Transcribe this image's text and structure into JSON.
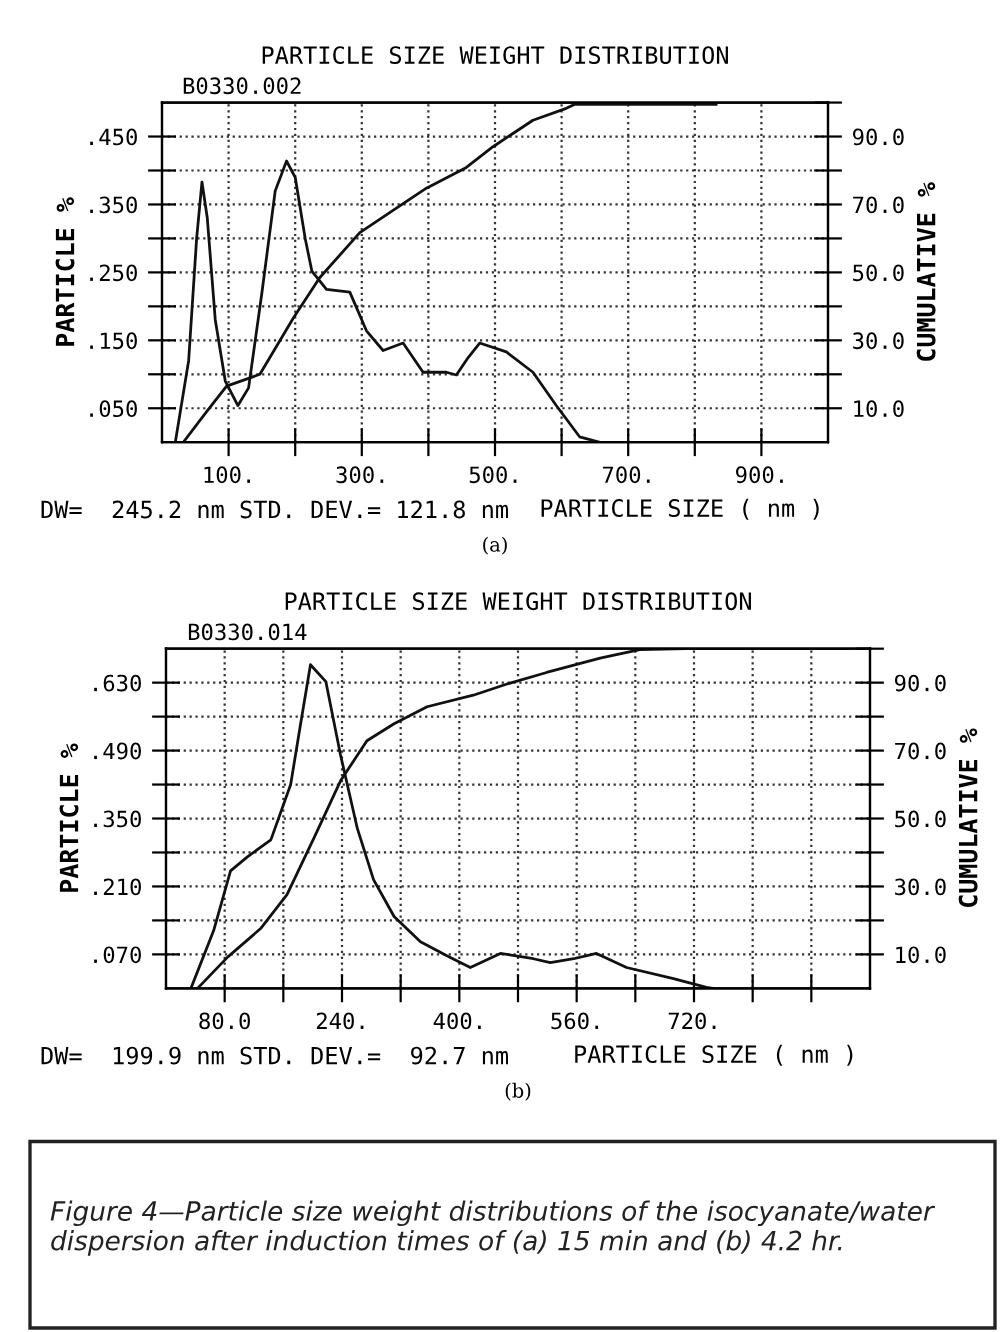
{
  "chart_data": [
    {
      "type": "line",
      "title": "PARTICLE SIZE WEIGHT DISTRIBUTION",
      "subtitle": "B0330.002",
      "xlabel": "PARTICLE SIZE ( nm )",
      "ylabel": "PARTICLE %",
      "y2label": "CUMULATIVE %",
      "annotations": [
        "DW=  245.2 nm STD. DEV.= 121.8 nm",
        "(a)"
      ],
      "xlim": [
        0,
        1000
      ],
      "xticks": [
        {
          "value": 100,
          "label": "100."
        },
        {
          "value": 200,
          "label": null
        },
        {
          "value": 300,
          "label": "300."
        },
        {
          "value": 400,
          "label": null
        },
        {
          "value": 500,
          "label": "500."
        },
        {
          "value": 600,
          "label": null
        },
        {
          "value": 700,
          "label": "700."
        },
        {
          "value": 800,
          "label": null
        },
        {
          "value": 900,
          "label": "900."
        }
      ],
      "ylim": [
        0,
        0.5
      ],
      "yticks": [
        {
          "value": 0.05,
          "label": ".050"
        },
        {
          "value": 0.1,
          "label": null
        },
        {
          "value": 0.15,
          "label": ".150"
        },
        {
          "value": 0.2,
          "label": null
        },
        {
          "value": 0.25,
          "label": ".250"
        },
        {
          "value": 0.3,
          "label": null
        },
        {
          "value": 0.35,
          "label": ".350"
        },
        {
          "value": 0.4,
          "label": null
        },
        {
          "value": 0.45,
          "label": ".450"
        }
      ],
      "y2lim": [
        0,
        100
      ],
      "y2ticks": [
        {
          "value": 10,
          "label": "10.0"
        },
        {
          "value": 20,
          "label": null
        },
        {
          "value": 30,
          "label": "30.0"
        },
        {
          "value": 40,
          "label": null
        },
        {
          "value": 50,
          "label": "50.0"
        },
        {
          "value": 60,
          "label": null
        },
        {
          "value": 70,
          "label": "70.0"
        },
        {
          "value": 80,
          "label": null
        },
        {
          "value": 90,
          "label": "90.0"
        },
        {
          "value": 100,
          "label": null
        }
      ],
      "grid": true,
      "marker": "none",
      "line_style": "solid",
      "series": [
        {
          "color": "#111111",
          "x": [
            20,
            40,
            52,
            60,
            68,
            80,
            95,
            114,
            130,
            150,
            170,
            187,
            200,
            215,
            225,
            247,
            282,
            307,
            332,
            362,
            392,
            427,
            442,
            460,
            477,
            517,
            557,
            592,
            627,
            657
          ],
          "values": [
            0,
            0.12,
            0.3,
            0.383,
            0.33,
            0.18,
            0.09,
            0.054,
            0.08,
            0.22,
            0.37,
            0.414,
            0.39,
            0.3,
            0.252,
            0.225,
            0.221,
            0.164,
            0.135,
            0.146,
            0.103,
            0.103,
            0.099,
            0.125,
            0.146,
            0.133,
            0.103,
            0.054,
            0.008,
            0
          ]
        },
        {
          "color": "#111111",
          "axis": "y2",
          "x": [
            32,
            67,
            97,
            147,
            197,
            237,
            297,
            357,
            397,
            457,
            497,
            557,
            607,
            620,
            832
          ],
          "values": [
            0,
            9,
            16.5,
            20,
            36.5,
            48.5,
            61.7,
            69.6,
            74.8,
            80.9,
            87,
            94.8,
            98.3,
            99.5,
            99.5
          ]
        }
      ]
    },
    {
      "type": "line",
      "title": "PARTICLE SIZE WEIGHT DISTRIBUTION",
      "subtitle": "B0330.014",
      "xlabel": "PARTICLE SIZE ( nm )",
      "ylabel": "PARTICLE %",
      "y2label": "CUMULATIVE %",
      "annotations": [
        "DW=  199.9 nm STD. DEV.=  92.7 nm",
        "(b)",
        "Figure 4—Particle size weight distributions of the isocyanate/water dispersion after induction times of (a) 15 min and (b) 4.2 hr."
      ],
      "xlim": [
        0,
        960
      ],
      "xticks": [
        {
          "value": 80,
          "label": "80.0"
        },
        {
          "value": 160,
          "label": null
        },
        {
          "value": 240,
          "label": "240."
        },
        {
          "value": 320,
          "label": null
        },
        {
          "value": 400,
          "label": "400."
        },
        {
          "value": 480,
          "label": null
        },
        {
          "value": 560,
          "label": "560."
        },
        {
          "value": 640,
          "label": null
        },
        {
          "value": 720,
          "label": "720."
        },
        {
          "value": 800,
          "label": null
        },
        {
          "value": 880,
          "label": null
        }
      ],
      "ylim": [
        0,
        0.7
      ],
      "yticks": [
        {
          "value": 0.07,
          "label": ".070"
        },
        {
          "value": 0.14,
          "label": null
        },
        {
          "value": 0.21,
          "label": ".210"
        },
        {
          "value": 0.28,
          "label": null
        },
        {
          "value": 0.35,
          "label": ".350"
        },
        {
          "value": 0.42,
          "label": null
        },
        {
          "value": 0.49,
          "label": ".490"
        },
        {
          "value": 0.56,
          "label": null
        },
        {
          "value": 0.63,
          "label": ".630"
        }
      ],
      "y2lim": [
        0,
        100
      ],
      "y2ticks": [
        {
          "value": 10,
          "label": "10.0"
        },
        {
          "value": 20,
          "label": null
        },
        {
          "value": 30,
          "label": "30.0"
        },
        {
          "value": 40,
          "label": null
        },
        {
          "value": 50,
          "label": "50.0"
        },
        {
          "value": 60,
          "label": null
        },
        {
          "value": 70,
          "label": "70.0"
        },
        {
          "value": 80,
          "label": null
        },
        {
          "value": 90,
          "label": "90.0"
        },
        {
          "value": 100,
          "label": null
        }
      ],
      "grid": true,
      "marker": "none",
      "line_style": "solid",
      "series": [
        {
          "color": "#111111",
          "x": [
            34,
            65,
            88,
            111,
            143,
            170,
            183,
            197,
            218,
            238,
            261,
            283,
            311,
            347,
            383,
            415,
            456,
            501,
            524,
            556,
            587,
            628,
            692,
            737,
            746
          ],
          "values": [
            0,
            0.119,
            0.242,
            0.271,
            0.306,
            0.42,
            0.54,
            0.667,
            0.632,
            0.481,
            0.329,
            0.224,
            0.148,
            0.096,
            0.067,
            0.043,
            0.072,
            0.061,
            0.053,
            0.061,
            0.072,
            0.043,
            0.02,
            0.002,
            0
          ]
        },
        {
          "color": "#111111",
          "axis": "y2",
          "x": [
            43,
            84,
            129,
            165,
            202,
            238,
            274,
            311,
            356,
            419,
            465,
            519,
            592,
            646,
            710,
            932
          ],
          "values": [
            0,
            9.2,
            17.6,
            27.6,
            44.4,
            61.1,
            72.9,
            77.9,
            82.9,
            86.3,
            89.6,
            93,
            97.2,
            99.7,
            100,
            100
          ]
        }
      ]
    }
  ]
}
